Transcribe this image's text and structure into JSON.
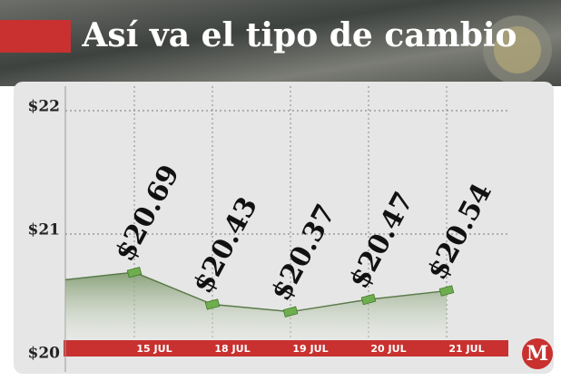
{
  "chart_data": {
    "type": "area",
    "title": "Así va el tipo de cambio",
    "logo": "M",
    "categories": [
      null,
      "15 JUL",
      "18 JUL",
      "19 JUL",
      "20 JUL",
      "21 JUL"
    ],
    "values": [
      20.63,
      20.69,
      20.43,
      20.37,
      20.47,
      20.54
    ],
    "value_labels": [
      null,
      "$20.69",
      "$20.43",
      "$20.37",
      "$20.47",
      "$20.54"
    ],
    "ylim": [
      20,
      22
    ],
    "yticks": [
      {
        "value": 20,
        "label": "$20"
      },
      {
        "value": 21,
        "label": "$21"
      },
      {
        "value": 22,
        "label": "$22"
      }
    ],
    "grid": true,
    "color": "#5b7a4a"
  }
}
